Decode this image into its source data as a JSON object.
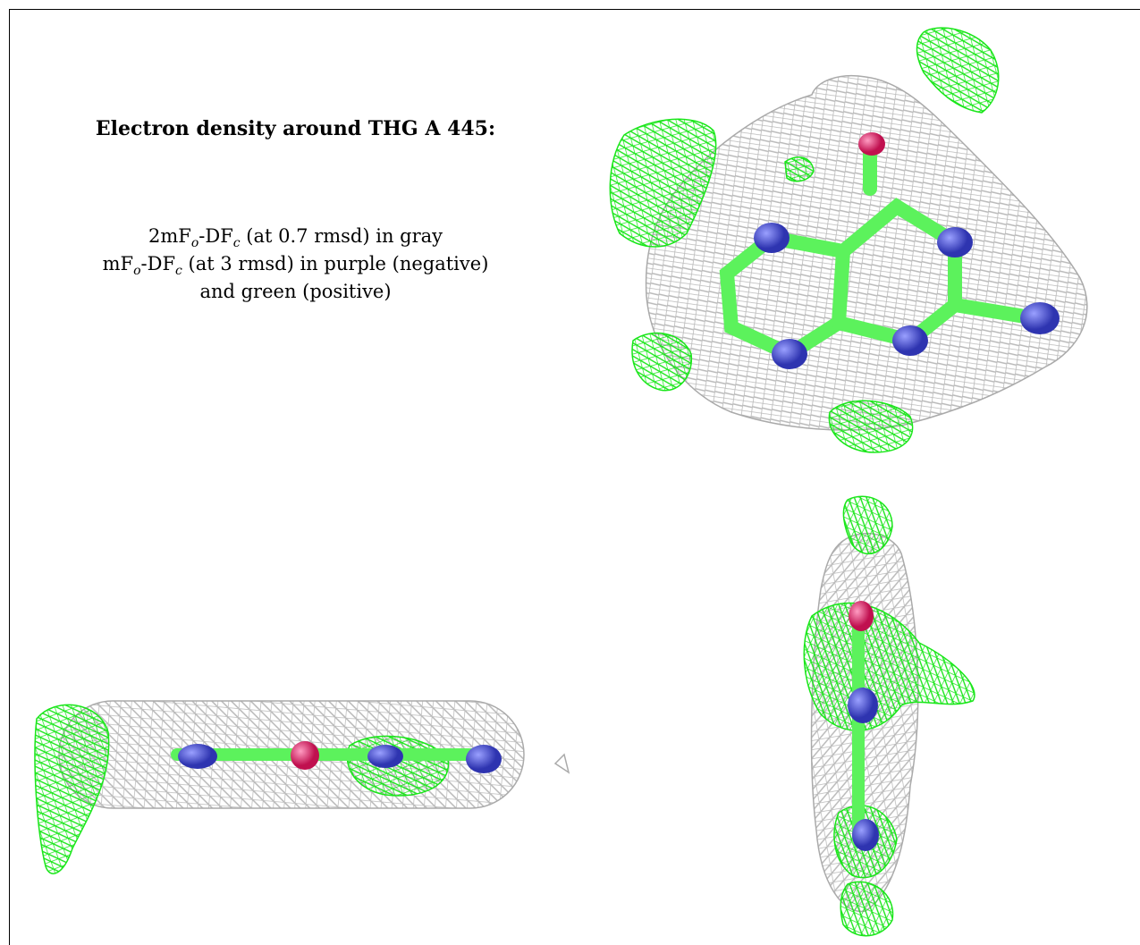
{
  "caption": {
    "title": "Electron density around THG A 445:",
    "line1": {
      "a": "2mF",
      "b": "o",
      "c": "-DF",
      "d": "c",
      "e": " (at 0.7 rmsd) in gray"
    },
    "line2": {
      "a": "mF",
      "b": "o",
      "c": "-DF",
      "d": "c",
      "e": " (at 3 rmsd) in purple (negative)"
    },
    "line3": "and green (positive)"
  },
  "views": [
    {
      "name": "top-view"
    },
    {
      "name": "edge-view-horizontal"
    },
    {
      "name": "edge-view-vertical"
    }
  ],
  "colors": {
    "mesh_2fofc": "#b9b9b9",
    "mesh_positive": "#19e619",
    "carbon": "#5cf25c",
    "nitrogen": "#4a4fd1",
    "oxygen": "#e8286e"
  }
}
